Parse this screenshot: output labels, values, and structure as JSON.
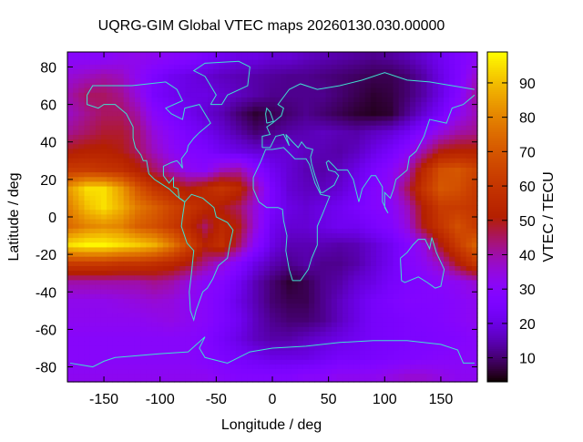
{
  "chart_data": {
    "type": "heatmap",
    "title": "UQRG-GIM Global VTEC maps 20260130.030.00000",
    "xlabel": "Longitude / deg",
    "ylabel": "Latitude / deg",
    "cblabel": "VTEC / TECU",
    "xlim": [
      -182.5,
      182.5
    ],
    "ylim": [
      -88,
      88
    ],
    "cblim": [
      3,
      99
    ],
    "xticks": [
      -150,
      -100,
      -50,
      0,
      50,
      100,
      150
    ],
    "yticks": [
      80,
      60,
      40,
      20,
      0,
      -20,
      -40,
      -60,
      -80
    ],
    "cbticks": [
      10,
      20,
      30,
      40,
      50,
      60,
      70,
      80,
      90
    ],
    "palette": "black-blue-violet-red-yellow",
    "coastline_color": "#40e0d0",
    "grid_lon": [
      -180,
      -165,
      -150,
      -135,
      -120,
      -105,
      -90,
      -75,
      -60,
      -45,
      -30,
      -15,
      0,
      15,
      30,
      45,
      60,
      75,
      90,
      105,
      120,
      135,
      150,
      165,
      180
    ],
    "grid_lat": [
      85,
      75,
      65,
      55,
      45,
      35,
      25,
      15,
      5,
      -5,
      -15,
      -25,
      -35,
      -45,
      -55,
      -65,
      -75,
      -85
    ],
    "values": [
      [
        30,
        30,
        30,
        32,
        33,
        32,
        30,
        28,
        25,
        22,
        20,
        20,
        18,
        18,
        16,
        15,
        14,
        13,
        12,
        13,
        15,
        18,
        22,
        26,
        30
      ],
      [
        36,
        38,
        40,
        38,
        32,
        26,
        22,
        20,
        18,
        16,
        15,
        14,
        13,
        12,
        12,
        11,
        10,
        9,
        8,
        8,
        10,
        14,
        20,
        26,
        36
      ],
      [
        40,
        45,
        45,
        42,
        35,
        25,
        22,
        20,
        20,
        18,
        16,
        14,
        12,
        12,
        12,
        12,
        10,
        8,
        6,
        7,
        10,
        14,
        20,
        28,
        40
      ],
      [
        38,
        42,
        45,
        45,
        40,
        30,
        25,
        22,
        18,
        15,
        10,
        6,
        8,
        10,
        12,
        10,
        8,
        6,
        5,
        6,
        12,
        18,
        24,
        32,
        38
      ],
      [
        42,
        45,
        48,
        48,
        44,
        35,
        30,
        25,
        22,
        18,
        14,
        10,
        12,
        14,
        15,
        16,
        15,
        14,
        16,
        18,
        22,
        28,
        35,
        40,
        42
      ],
      [
        50,
        52,
        52,
        50,
        45,
        38,
        32,
        28,
        26,
        22,
        20,
        18,
        18,
        18,
        16,
        15,
        14,
        16,
        20,
        24,
        30,
        40,
        50,
        52,
        52
      ],
      [
        62,
        62,
        60,
        58,
        52,
        45,
        38,
        32,
        30,
        38,
        40,
        30,
        22,
        18,
        15,
        14,
        16,
        20,
        25,
        30,
        38,
        55,
        68,
        70,
        65
      ],
      [
        85,
        95,
        95,
        85,
        70,
        60,
        55,
        50,
        55,
        60,
        55,
        40,
        25,
        18,
        16,
        16,
        18,
        22,
        28,
        32,
        45,
        60,
        70,
        68,
        62
      ],
      [
        80,
        90,
        95,
        88,
        78,
        72,
        65,
        60,
        55,
        50,
        45,
        35,
        25,
        20,
        18,
        20,
        22,
        25,
        28,
        30,
        38,
        52,
        62,
        62,
        60
      ],
      [
        75,
        80,
        82,
        80,
        72,
        68,
        62,
        55,
        45,
        55,
        50,
        35,
        22,
        18,
        18,
        20,
        22,
        22,
        25,
        28,
        35,
        50,
        60,
        68,
        62
      ],
      [
        95,
        98,
        98,
        95,
        92,
        88,
        78,
        65,
        52,
        58,
        45,
        30,
        20,
        15,
        15,
        15,
        14,
        15,
        18,
        22,
        28,
        35,
        50,
        62,
        72
      ],
      [
        62,
        62,
        62,
        60,
        60,
        58,
        55,
        50,
        42,
        35,
        28,
        20,
        15,
        12,
        14,
        12,
        12,
        14,
        18,
        22,
        28,
        32,
        38,
        50,
        60
      ],
      [
        40,
        40,
        40,
        40,
        40,
        42,
        40,
        35,
        30,
        28,
        22,
        15,
        10,
        6,
        8,
        12,
        14,
        18,
        20,
        24,
        26,
        28,
        30,
        32,
        36
      ],
      [
        33,
        33,
        33,
        34,
        35,
        36,
        35,
        32,
        30,
        26,
        20,
        15,
        10,
        8,
        8,
        12,
        16,
        20,
        24,
        26,
        28,
        28,
        28,
        30,
        32
      ],
      [
        32,
        32,
        32,
        32,
        32,
        33,
        34,
        32,
        30,
        26,
        22,
        16,
        12,
        10,
        10,
        12,
        16,
        20,
        24,
        25,
        26,
        27,
        28,
        30,
        32
      ],
      [
        30,
        30,
        30,
        30,
        30,
        30,
        30,
        30,
        28,
        24,
        20,
        16,
        14,
        14,
        16,
        18,
        20,
        22,
        24,
        25,
        26,
        26,
        27,
        28,
        30
      ],
      [
        30,
        30,
        30,
        30,
        30,
        30,
        30,
        30,
        28,
        26,
        24,
        22,
        20,
        20,
        20,
        22,
        24,
        24,
        25,
        26,
        27,
        28,
        29,
        30,
        30
      ],
      [
        32,
        32,
        32,
        32,
        32,
        32,
        32,
        32,
        32,
        30,
        28,
        28,
        28,
        28,
        30,
        30,
        32,
        32,
        32,
        34,
        36,
        36,
        34,
        32,
        32
      ]
    ],
    "coastlines": [
      [
        [
          -165,
          65
        ],
        [
          -160,
          70
        ],
        [
          -140,
          70
        ],
        [
          -125,
          70
        ],
        [
          -95,
          72
        ],
        [
          -85,
          68
        ],
        [
          -80,
          62
        ],
        [
          -95,
          58
        ],
        [
          -90,
          55
        ],
        [
          -80,
          52
        ],
        [
          -78,
          58
        ],
        [
          -65,
          60
        ],
        [
          -60,
          55
        ],
        [
          -55,
          50
        ],
        [
          -65,
          45
        ],
        [
          -70,
          42
        ],
        [
          -75,
          38
        ],
        [
          -76,
          35
        ],
        [
          -81,
          31
        ],
        [
          -80,
          26
        ],
        [
          -82,
          28
        ],
        [
          -85,
          30
        ],
        [
          -90,
          29
        ],
        [
          -97,
          27
        ],
        [
          -97,
          22
        ],
        [
          -92,
          18
        ],
        [
          -88,
          21
        ],
        [
          -88,
          16
        ],
        [
          -84,
          15
        ],
        [
          -83,
          10
        ],
        [
          -78,
          8
        ],
        [
          -80,
          9
        ],
        [
          -85,
          11
        ],
        [
          -92,
          15
        ],
        [
          -105,
          20
        ],
        [
          -110,
          23
        ],
        [
          -112,
          30
        ],
        [
          -115,
          30
        ],
        [
          -117,
          33
        ],
        [
          -122,
          37
        ],
        [
          -124,
          42
        ],
        [
          -124,
          48
        ],
        [
          -130,
          55
        ],
        [
          -140,
          60
        ],
        [
          -150,
          60
        ],
        [
          -155,
          58
        ],
        [
          -165,
          60
        ],
        [
          -165,
          65
        ]
      ],
      [
        [
          -78,
          8
        ],
        [
          -72,
          12
        ],
        [
          -62,
          10
        ],
        [
          -52,
          5
        ],
        [
          -50,
          0
        ],
        [
          -40,
          -3
        ],
        [
          -35,
          -7
        ],
        [
          -38,
          -15
        ],
        [
          -40,
          -22
        ],
        [
          -48,
          -26
        ],
        [
          -53,
          -33
        ],
        [
          -58,
          -38
        ],
        [
          -62,
          -40
        ],
        [
          -65,
          -45
        ],
        [
          -68,
          -50
        ],
        [
          -70,
          -55
        ],
        [
          -73,
          -50
        ],
        [
          -74,
          -40
        ],
        [
          -72,
          -30
        ],
        [
          -70,
          -18
        ],
        [
          -76,
          -14
        ],
        [
          -81,
          -5
        ],
        [
          -80,
          0
        ],
        [
          -78,
          8
        ]
      ],
      [
        [
          -17,
          21
        ],
        [
          -17,
          15
        ],
        [
          -12,
          8
        ],
        [
          -5,
          5
        ],
        [
          5,
          5
        ],
        [
          9,
          4
        ],
        [
          10,
          -2
        ],
        [
          13,
          -10
        ],
        [
          12,
          -18
        ],
        [
          15,
          -28
        ],
        [
          18,
          -34
        ],
        [
          25,
          -34
        ],
        [
          32,
          -28
        ],
        [
          35,
          -22
        ],
        [
          40,
          -15
        ],
        [
          40,
          -5
        ],
        [
          45,
          2
        ],
        [
          51,
          11
        ],
        [
          43,
          12
        ],
        [
          38,
          18
        ],
        [
          33,
          28
        ],
        [
          30,
          31
        ],
        [
          20,
          31
        ],
        [
          10,
          37
        ],
        [
          0,
          36
        ],
        [
          -6,
          36
        ],
        [
          -10,
          30
        ],
        [
          -17,
          21
        ]
      ],
      [
        [
          -9,
          37
        ],
        [
          -9,
          43
        ],
        [
          -2,
          44
        ],
        [
          -5,
          48
        ],
        [
          0,
          50
        ],
        [
          8,
          54
        ],
        [
          10,
          58
        ],
        [
          5,
          60
        ],
        [
          15,
          68
        ],
        [
          25,
          71
        ],
        [
          40,
          68
        ],
        [
          60,
          70
        ],
        [
          80,
          73
        ],
        [
          100,
          77
        ],
        [
          120,
          73
        ],
        [
          140,
          72
        ],
        [
          160,
          70
        ],
        [
          180,
          68
        ]
      ],
      [
        [
          180,
          65
        ],
        [
          170,
          60
        ],
        [
          160,
          58
        ],
        [
          155,
          50
        ],
        [
          140,
          52
        ],
        [
          135,
          43
        ],
        [
          128,
          35
        ],
        [
          122,
          32
        ],
        [
          120,
          25
        ],
        [
          110,
          20
        ],
        [
          108,
          15
        ],
        [
          105,
          10
        ],
        [
          100,
          13
        ],
        [
          100,
          5
        ],
        [
          103,
          2
        ],
        [
          98,
          8
        ],
        [
          98,
          16
        ],
        [
          92,
          22
        ],
        [
          88,
          22
        ],
        [
          80,
          15
        ],
        [
          77,
          8
        ],
        [
          72,
          20
        ],
        [
          67,
          25
        ],
        [
          58,
          25
        ],
        [
          55,
          27
        ],
        [
          50,
          30
        ],
        [
          48,
          29
        ],
        [
          50,
          25
        ],
        [
          56,
          24
        ],
        [
          59,
          22
        ],
        [
          55,
          17
        ],
        [
          45,
          13
        ],
        [
          43,
          13
        ],
        [
          38,
          22
        ],
        [
          35,
          28
        ],
        [
          34,
          32
        ],
        [
          36,
          36
        ],
        [
          30,
          37
        ],
        [
          26,
          40
        ],
        [
          23,
          37
        ],
        [
          18,
          40
        ],
        [
          12,
          44
        ],
        [
          15,
          38
        ],
        [
          10,
          44
        ],
        [
          3,
          43
        ],
        [
          -2,
          37
        ],
        [
          -9,
          37
        ]
      ],
      [
        [
          114,
          -22
        ],
        [
          115,
          -34
        ],
        [
          118,
          -35
        ],
        [
          130,
          -32
        ],
        [
          138,
          -35
        ],
        [
          145,
          -38
        ],
        [
          150,
          -37
        ],
        [
          153,
          -28
        ],
        [
          146,
          -19
        ],
        [
          142,
          -11
        ],
        [
          140,
          -17
        ],
        [
          136,
          -12
        ],
        [
          130,
          -12
        ],
        [
          125,
          -15
        ],
        [
          120,
          -19
        ],
        [
          114,
          -22
        ]
      ],
      [
        [
          -180,
          -78
        ],
        [
          -160,
          -80
        ],
        [
          -150,
          -77
        ],
        [
          -140,
          -75
        ],
        [
          -120,
          -74
        ],
        [
          -100,
          -73
        ],
        [
          -75,
          -72
        ],
        [
          -60,
          -64
        ],
        [
          -65,
          -70
        ],
        [
          -60,
          -75
        ],
        [
          -40,
          -78
        ],
        [
          -20,
          -72
        ],
        [
          0,
          -70
        ],
        [
          30,
          -69
        ],
        [
          60,
          -67
        ],
        [
          90,
          -66
        ],
        [
          120,
          -66
        ],
        [
          150,
          -68
        ],
        [
          165,
          -71
        ],
        [
          170,
          -78
        ],
        [
          180,
          -78
        ]
      ],
      [
        [
          -55,
          60
        ],
        [
          -45,
          60
        ],
        [
          -40,
          65
        ],
        [
          -22,
          70
        ],
        [
          -20,
          80
        ],
        [
          -30,
          83
        ],
        [
          -60,
          82
        ],
        [
          -70,
          78
        ],
        [
          -60,
          75
        ],
        [
          -55,
          70
        ],
        [
          -50,
          65
        ],
        [
          -55,
          60
        ]
      ],
      [
        [
          -5,
          50
        ],
        [
          1,
          51
        ],
        [
          -2,
          56
        ],
        [
          -5,
          58
        ],
        [
          -6,
          55
        ],
        [
          -5,
          50
        ]
      ]
    ]
  }
}
